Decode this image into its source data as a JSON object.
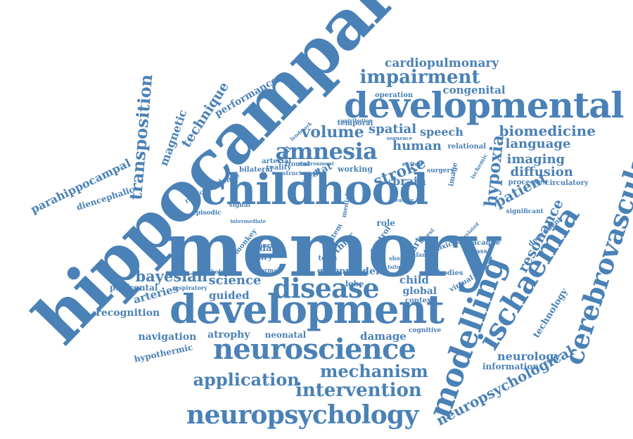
{
  "colors": {
    "word": "#4a81b6",
    "background": "#ffffff"
  },
  "words": [
    {
      "text": "hippocampal"
    },
    {
      "text": "memory"
    },
    {
      "text": "childhood"
    },
    {
      "text": "developmental"
    },
    {
      "text": "development"
    },
    {
      "text": "neuroscience"
    },
    {
      "text": "disease"
    },
    {
      "text": "modelling"
    },
    {
      "text": "ischaemia"
    },
    {
      "text": "cerebrovascular"
    },
    {
      "text": "neuropsychology"
    },
    {
      "text": "amnesia"
    },
    {
      "text": "impairment"
    },
    {
      "text": "hypoxia"
    },
    {
      "text": "transposition"
    },
    {
      "text": "stroke"
    },
    {
      "text": "intervention"
    },
    {
      "text": "mechanism"
    },
    {
      "text": "application"
    },
    {
      "text": "neuropsychological"
    },
    {
      "text": "biomedicine"
    },
    {
      "text": "language"
    },
    {
      "text": "imaging"
    },
    {
      "text": "diffusion"
    },
    {
      "text": "patient"
    },
    {
      "text": "resonance"
    },
    {
      "text": "volume"
    },
    {
      "text": "spatial"
    },
    {
      "text": "human"
    },
    {
      "text": "cardiopulmonary"
    },
    {
      "text": "congenital"
    },
    {
      "text": "technique"
    },
    {
      "text": "magnetic"
    },
    {
      "text": "performance"
    },
    {
      "text": "parahippocampal"
    },
    {
      "text": "diencephalic"
    },
    {
      "text": "bayesian"
    },
    {
      "text": "science"
    },
    {
      "text": "guided"
    },
    {
      "text": "arteries"
    },
    {
      "text": "recognition"
    },
    {
      "text": "prefrontal"
    },
    {
      "text": "navigation"
    },
    {
      "text": "atrophy"
    },
    {
      "text": "neonatal"
    },
    {
      "text": "damage"
    },
    {
      "text": "hypothermic"
    },
    {
      "text": "neurology"
    },
    {
      "text": "information"
    },
    {
      "text": "technology"
    },
    {
      "text": "speech"
    },
    {
      "text": "brain"
    },
    {
      "text": "child"
    },
    {
      "text": "global"
    },
    {
      "text": "context"
    },
    {
      "text": "role"
    },
    {
      "text": "model"
    },
    {
      "text": "group"
    },
    {
      "text": "lobe"
    },
    {
      "text": "data"
    },
    {
      "text": "injury"
    },
    {
      "text": "cohort"
    },
    {
      "text": "working"
    },
    {
      "text": "stat"
    },
    {
      "text": "great"
    },
    {
      "text": "temporal"
    },
    {
      "text": "operation"
    },
    {
      "text": "relational"
    },
    {
      "text": "processes"
    },
    {
      "text": "circulatory"
    },
    {
      "text": "significant"
    },
    {
      "text": "dependent"
    },
    {
      "text": "macaque"
    },
    {
      "text": "bypass"
    },
    {
      "text": "bodies"
    },
    {
      "text": "virtual"
    },
    {
      "text": "cognitive"
    },
    {
      "text": "hypoxic"
    },
    {
      "text": "heart"
    },
    {
      "text": "thier"
    },
    {
      "text": "control"
    },
    {
      "text": "monkey"
    },
    {
      "text": "reality"
    },
    {
      "text": "bilateral"
    },
    {
      "text": "arterial"
    },
    {
      "text": "frontal"
    },
    {
      "text": "focal"
    },
    {
      "text": "evidence"
    },
    {
      "text": "reduction"
    },
    {
      "text": "episodic"
    },
    {
      "text": "signal"
    },
    {
      "text": "surgery"
    },
    {
      "text": "image"
    },
    {
      "text": "switch"
    },
    {
      "text": "ischemic"
    },
    {
      "text": "pathology"
    },
    {
      "text": "normal"
    },
    {
      "text": "respiratory"
    },
    {
      "text": "task"
    },
    {
      "text": "medial"
    },
    {
      "text": "structure"
    },
    {
      "text": "contribution"
    },
    {
      "text": "sequence"
    },
    {
      "text": "landmark"
    },
    {
      "text": "environment"
    },
    {
      "text": "measure"
    },
    {
      "text": "infant"
    },
    {
      "text": "arrest"
    },
    {
      "text": "item"
    },
    {
      "text": "term"
    },
    {
      "text": "test"
    },
    {
      "text": "intermediate"
    },
    {
      "text": "short"
    },
    {
      "text": "failure"
    },
    {
      "text": "correlated"
    }
  ]
}
